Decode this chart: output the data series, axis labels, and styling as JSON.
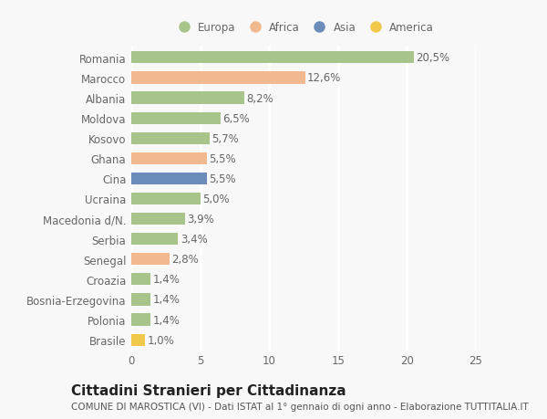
{
  "categories": [
    "Romania",
    "Marocco",
    "Albania",
    "Moldova",
    "Kosovo",
    "Ghana",
    "Cina",
    "Ucraina",
    "Macedonia d/N.",
    "Serbia",
    "Senegal",
    "Croazia",
    "Bosnia-Erzegovina",
    "Polonia",
    "Brasile"
  ],
  "values": [
    20.5,
    12.6,
    8.2,
    6.5,
    5.7,
    5.5,
    5.5,
    5.0,
    3.9,
    3.4,
    2.8,
    1.4,
    1.4,
    1.4,
    1.0
  ],
  "labels": [
    "20,5%",
    "12,6%",
    "8,2%",
    "6,5%",
    "5,7%",
    "5,5%",
    "5,5%",
    "5,0%",
    "3,9%",
    "3,4%",
    "2,8%",
    "1,4%",
    "1,4%",
    "1,4%",
    "1,0%"
  ],
  "colors": [
    "#a8c48a",
    "#f0b990",
    "#a8c48a",
    "#a8c48a",
    "#a8c48a",
    "#f0b990",
    "#6b8cba",
    "#a8c48a",
    "#a8c48a",
    "#a8c48a",
    "#f0b990",
    "#a8c48a",
    "#a8c48a",
    "#a8c48a",
    "#f0c84a"
  ],
  "legend": [
    {
      "label": "Europa",
      "color": "#a8c48a"
    },
    {
      "label": "Africa",
      "color": "#f0b990"
    },
    {
      "label": "Asia",
      "color": "#6b8cba"
    },
    {
      "label": "America",
      "color": "#f0c84a"
    }
  ],
  "xlim": [
    0,
    25
  ],
  "xticks": [
    0,
    5,
    10,
    15,
    20,
    25
  ],
  "title": "Cittadini Stranieri per Cittadinanza",
  "subtitle": "COMUNE DI MAROSTICA (VI) - Dati ISTAT al 1° gennaio di ogni anno - Elaborazione TUTTITALIA.IT",
  "background_color": "#f8f8f8",
  "grid_color": "#ffffff",
  "text_color": "#666666",
  "title_fontsize": 11,
  "subtitle_fontsize": 7.5,
  "label_fontsize": 8.5,
  "tick_fontsize": 8.5,
  "bar_height": 0.6
}
